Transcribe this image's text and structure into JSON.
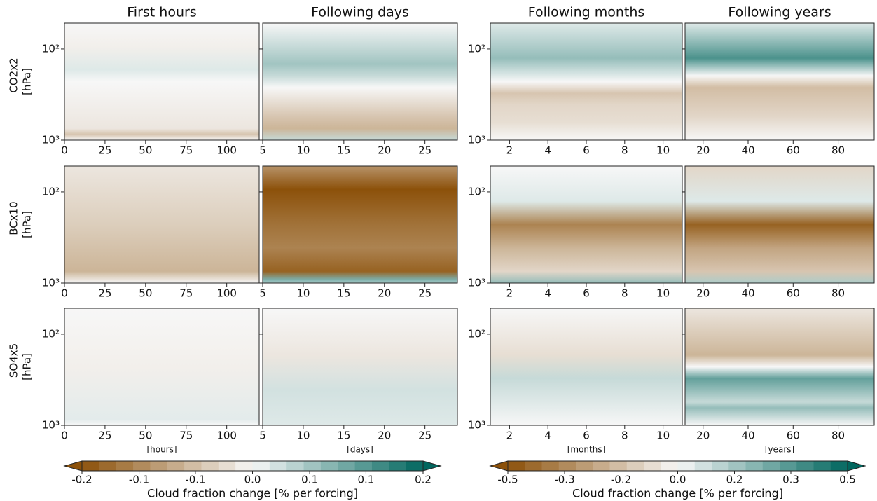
{
  "chart_data": {
    "type": "contour",
    "columns": [
      {
        "title": "First hours",
        "xlabel": "[hours]",
        "xlim": [
          0,
          120
        ],
        "xticks": [
          0,
          25,
          50,
          75,
          100
        ]
      },
      {
        "title": "Following days",
        "xlabel": "[days]",
        "xlim": [
          5,
          29
        ],
        "xticks": [
          5,
          10,
          15,
          20,
          25
        ]
      },
      {
        "title": "Following months",
        "xlabel": "[months]",
        "xlim": [
          1,
          11
        ],
        "xticks": [
          2,
          4,
          6,
          8,
          10
        ]
      },
      {
        "title": "Following years",
        "xlabel": "[years]",
        "xlim": [
          12,
          96
        ],
        "xticks": [
          20,
          40,
          60,
          80
        ]
      }
    ],
    "rows": [
      "CO2x2",
      "BCx10",
      "SO4x5"
    ],
    "ylabel": "[hPa]",
    "yscale": "log",
    "ylim": [
      1000,
      52
    ],
    "yticks": [
      {
        "value": 100,
        "label": "10²"
      },
      {
        "value": 1000,
        "label": "10³"
      }
    ],
    "colorbars": [
      {
        "label": "Cloud fraction change [% per forcing]",
        "lim": [
          -0.2,
          0.2
        ],
        "ticks": [
          -0.2,
          {
            "value": -0.133,
            "label": "-0.1"
          },
          {
            "value": -0.067,
            "label": "-0.1"
          },
          {
            "value": 0,
            "label": "0.0"
          },
          {
            "value": 0.067,
            "label": "0.1"
          },
          {
            "value": 0.133,
            "label": "0.1"
          },
          0.2
        ]
      },
      {
        "label": "Cloud fraction change [% per forcing]",
        "lim": [
          -0.5,
          0.5
        ],
        "ticks": [
          -0.5,
          {
            "value": -0.333,
            "label": "-0.3"
          },
          {
            "value": -0.167,
            "label": "-0.2"
          },
          {
            "value": 0,
            "label": "0.0"
          },
          {
            "value": 0.167,
            "label": "0.2"
          },
          {
            "value": 0.333,
            "label": "0.3"
          },
          0.5
        ]
      }
    ]
  }
}
